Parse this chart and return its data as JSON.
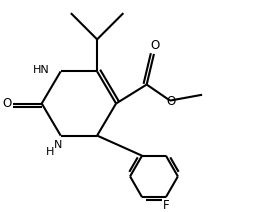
{
  "background": "#ffffff",
  "line_color": "#000000",
  "line_width": 1.5,
  "figure_size": [
    2.58,
    2.12
  ],
  "dpi": 100,
  "xlim": [
    0,
    8.5
  ],
  "ylim": [
    0,
    7.0
  ]
}
